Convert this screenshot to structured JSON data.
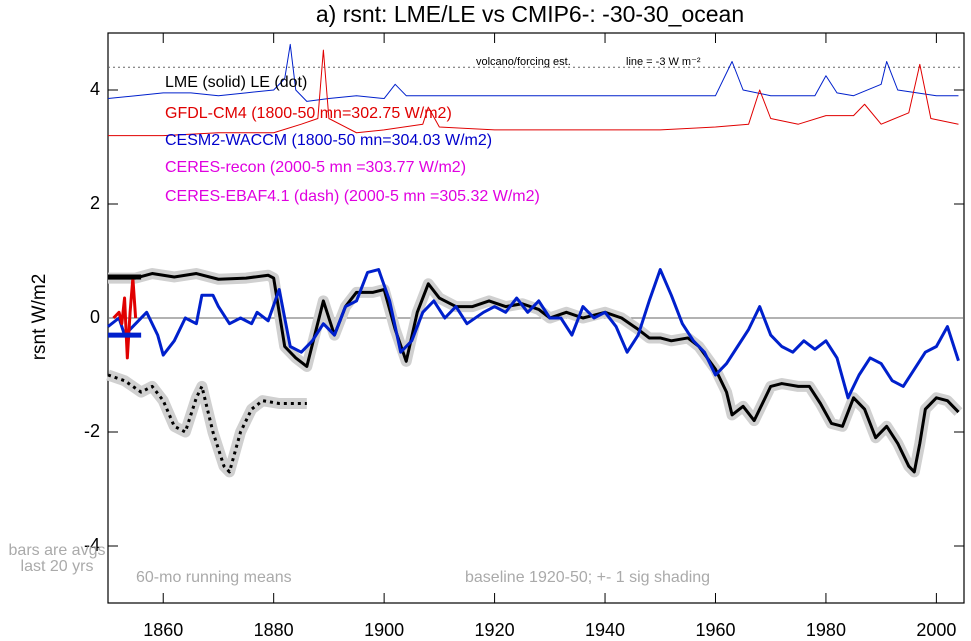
{
  "chart_data": {
    "type": "line",
    "title": "a) rsnt: LME/LE vs CMIP6-: -30-30_ocean",
    "y_label": "rsnt W/m2",
    "xlim": [
      1850,
      2005
    ],
    "xticks": [
      1860,
      1880,
      1900,
      1920,
      1940,
      1960,
      1980,
      2000
    ],
    "ylim": [
      -5,
      5
    ],
    "yticks": [
      -4,
      -2,
      0,
      2,
      4
    ],
    "legend_texts": [
      {
        "text": "LME (solid)   LE (dot)",
        "color": "#000000"
      },
      {
        "text": "GFDL-CM4 (1800-50 mn=302.75 W/m2)",
        "color": "#e00000"
      },
      {
        "text": "CESM2-WACCM (1800-50 mn=304.03 W/m2)",
        "color": "#0000cc"
      },
      {
        "text": "CERES-recon (2000-5 mn =303.77 W/m2)",
        "color": "#e000e0"
      },
      {
        "text": "CERES-EBAF4.1 (dash) (2000-5 mn =305.32 W/m2)",
        "color": "#e000e0"
      }
    ],
    "annotations": [
      "volcano/forcing est.",
      "line = -3 W m⁻²",
      "bars are avgs",
      "last 20 yrs",
      "60-mo running means",
      "baseline 1920-50; +- 1 sig shading"
    ],
    "reference_lines": [
      {
        "value": 0,
        "color": "#666666",
        "dash": false
      },
      {
        "value": 4.4,
        "color": "#666666",
        "dash": true
      }
    ],
    "series": [
      {
        "color": "#000000",
        "width": 3,
        "dash": false,
        "shading": true,
        "x": [
          1850,
          1855,
          1858,
          1862,
          1866,
          1870,
          1875,
          1879,
          1880,
          1882,
          1884,
          1886,
          1889,
          1891,
          1893,
          1895,
          1898,
          1900,
          1902,
          1904,
          1906,
          1908,
          1910,
          1913,
          1916,
          1919,
          1922,
          1925,
          1928,
          1930,
          1933,
          1936,
          1938,
          1940,
          1943,
          1946,
          1948,
          1950,
          1952,
          1955,
          1957,
          1960,
          1962,
          1963,
          1965,
          1967,
          1968,
          1970,
          1972,
          1975,
          1977,
          1979,
          1981,
          1983,
          1985,
          1987,
          1989,
          1991,
          1993,
          1995,
          1996,
          1997,
          1998,
          2000,
          2002,
          2004
        ],
        "values": [
          0.7,
          0.7,
          0.78,
          0.72,
          0.78,
          0.68,
          0.7,
          0.75,
          0.7,
          -0.5,
          -0.7,
          -0.85,
          0.3,
          -0.3,
          0.2,
          0.45,
          0.45,
          0.5,
          -0.2,
          -0.76,
          0.1,
          0.6,
          0.35,
          0.2,
          0.2,
          0.3,
          0.2,
          0.25,
          0.15,
          0.0,
          0.1,
          0.0,
          0.05,
          0.1,
          0.0,
          -0.2,
          -0.35,
          -0.35,
          -0.4,
          -0.35,
          -0.5,
          -0.9,
          -1.3,
          -1.7,
          -1.55,
          -1.8,
          -1.6,
          -1.2,
          -1.15,
          -1.2,
          -1.2,
          -1.5,
          -1.85,
          -1.9,
          -1.4,
          -1.6,
          -2.1,
          -1.9,
          -2.2,
          -2.6,
          -2.7,
          -2.2,
          -1.6,
          -1.4,
          -1.45,
          -1.65
        ]
      },
      {
        "color": "#000000",
        "width": 3,
        "dash": true,
        "shading": true,
        "x": [
          1850,
          1853,
          1856,
          1858,
          1860,
          1862,
          1864,
          1866,
          1867,
          1869,
          1871,
          1872,
          1874,
          1876,
          1878,
          1881,
          1884,
          1886
        ],
        "values": [
          -1.0,
          -1.1,
          -1.3,
          -1.2,
          -1.45,
          -1.9,
          -2.0,
          -1.4,
          -1.2,
          -2.0,
          -2.6,
          -2.7,
          -2.0,
          -1.6,
          -1.45,
          -1.5,
          -1.5,
          -1.5
        ]
      },
      {
        "color": "#0020cc",
        "width": 3,
        "dash": false,
        "shading": false,
        "x": [
          1850,
          1852,
          1853,
          1855,
          1857,
          1859,
          1860,
          1862,
          1864,
          1866,
          1867,
          1869,
          1870,
          1872,
          1874,
          1876,
          1877,
          1879,
          1881,
          1883,
          1885,
          1887,
          1889,
          1891,
          1893,
          1895,
          1897,
          1899,
          1901,
          1903,
          1905,
          1907,
          1909,
          1911,
          1913,
          1915,
          1918,
          1920,
          1922,
          1924,
          1926,
          1928,
          1930,
          1932,
          1934,
          1936,
          1938,
          1940,
          1942,
          1944,
          1946,
          1948,
          1950,
          1952,
          1954,
          1956,
          1958,
          1960,
          1962,
          1964,
          1966,
          1968,
          1970,
          1972,
          1974,
          1976,
          1978,
          1980,
          1982,
          1984,
          1986,
          1988,
          1990,
          1992,
          1994,
          1996,
          1998,
          2000,
          2002,
          2004
        ],
        "values": [
          -0.15,
          0.0,
          -0.3,
          -0.1,
          0.1,
          -0.3,
          -0.65,
          -0.4,
          0.0,
          -0.1,
          0.4,
          0.4,
          0.2,
          -0.1,
          0.0,
          -0.1,
          0.1,
          -0.05,
          0.5,
          -0.5,
          -0.6,
          -0.4,
          -0.1,
          -0.3,
          0.2,
          0.3,
          0.8,
          0.85,
          0.3,
          -0.6,
          -0.4,
          0.1,
          0.3,
          0.0,
          0.2,
          -0.1,
          0.1,
          0.2,
          0.1,
          0.35,
          0.1,
          0.3,
          0.0,
          0.0,
          -0.3,
          0.2,
          0.0,
          0.1,
          -0.15,
          -0.6,
          -0.3,
          0.3,
          0.85,
          0.4,
          -0.1,
          -0.4,
          -0.6,
          -1.0,
          -0.8,
          -0.5,
          -0.2,
          0.2,
          -0.3,
          -0.5,
          -0.6,
          -0.4,
          -0.55,
          -0.4,
          -0.7,
          -1.4,
          -1.0,
          -0.7,
          -0.8,
          -1.1,
          -1.2,
          -0.9,
          -0.6,
          -0.5,
          -0.15,
          -0.75
        ]
      },
      {
        "color": "#0020cc",
        "width": 1,
        "dash": false,
        "shading": false,
        "x": [
          1850,
          1855,
          1860,
          1865,
          1870,
          1875,
          1880,
          1882,
          1883,
          1884,
          1886,
          1890,
          1895,
          1900,
          1902,
          1904,
          1910,
          1920,
          1930,
          1940,
          1950,
          1960,
          1963,
          1965,
          1970,
          1978,
          1980,
          1982,
          1985,
          1990,
          1991,
          1993,
          2000,
          2004
        ],
        "values": [
          3.85,
          3.9,
          3.95,
          3.95,
          3.9,
          3.95,
          4.0,
          4.2,
          4.8,
          4.0,
          3.8,
          3.85,
          3.9,
          3.85,
          4.1,
          3.9,
          3.9,
          3.9,
          3.9,
          3.9,
          3.9,
          3.9,
          4.5,
          4.0,
          3.9,
          3.9,
          4.25,
          3.95,
          3.9,
          4.1,
          4.5,
          4.0,
          3.9,
          3.9
        ]
      },
      {
        "color": "#e00000",
        "width": 1,
        "dash": false,
        "shading": false,
        "x": [
          1850,
          1860,
          1870,
          1880,
          1885,
          1888,
          1889,
          1890,
          1895,
          1900,
          1907,
          1908,
          1910,
          1920,
          1930,
          1940,
          1950,
          1960,
          1966,
          1968,
          1970,
          1975,
          1980,
          1985,
          1987,
          1990,
          1995,
          1997,
          1999,
          2004
        ],
        "values": [
          3.2,
          3.2,
          3.25,
          3.25,
          3.4,
          3.5,
          4.7,
          3.5,
          3.25,
          3.3,
          3.4,
          3.7,
          3.35,
          3.3,
          3.3,
          3.3,
          3.3,
          3.35,
          3.4,
          4.0,
          3.5,
          3.4,
          3.55,
          3.55,
          3.75,
          3.4,
          3.6,
          4.45,
          3.5,
          3.4
        ]
      },
      {
        "color": "#e00000",
        "width": 3,
        "dash": false,
        "shading": false,
        "x": [
          1851,
          1852,
          1852.5,
          1853,
          1853.5,
          1854,
          1854.5,
          1855
        ],
        "values": [
          0,
          0.1,
          -0.1,
          0.35,
          -0.7,
          0.1,
          0.7,
          0.0
        ]
      }
    ],
    "bars": [
      {
        "color": "#000000",
        "x": [
          1850,
          1856
        ],
        "value": 0.72
      },
      {
        "color": "#0020cc",
        "x": [
          1850,
          1856
        ],
        "value": -0.3
      }
    ]
  }
}
